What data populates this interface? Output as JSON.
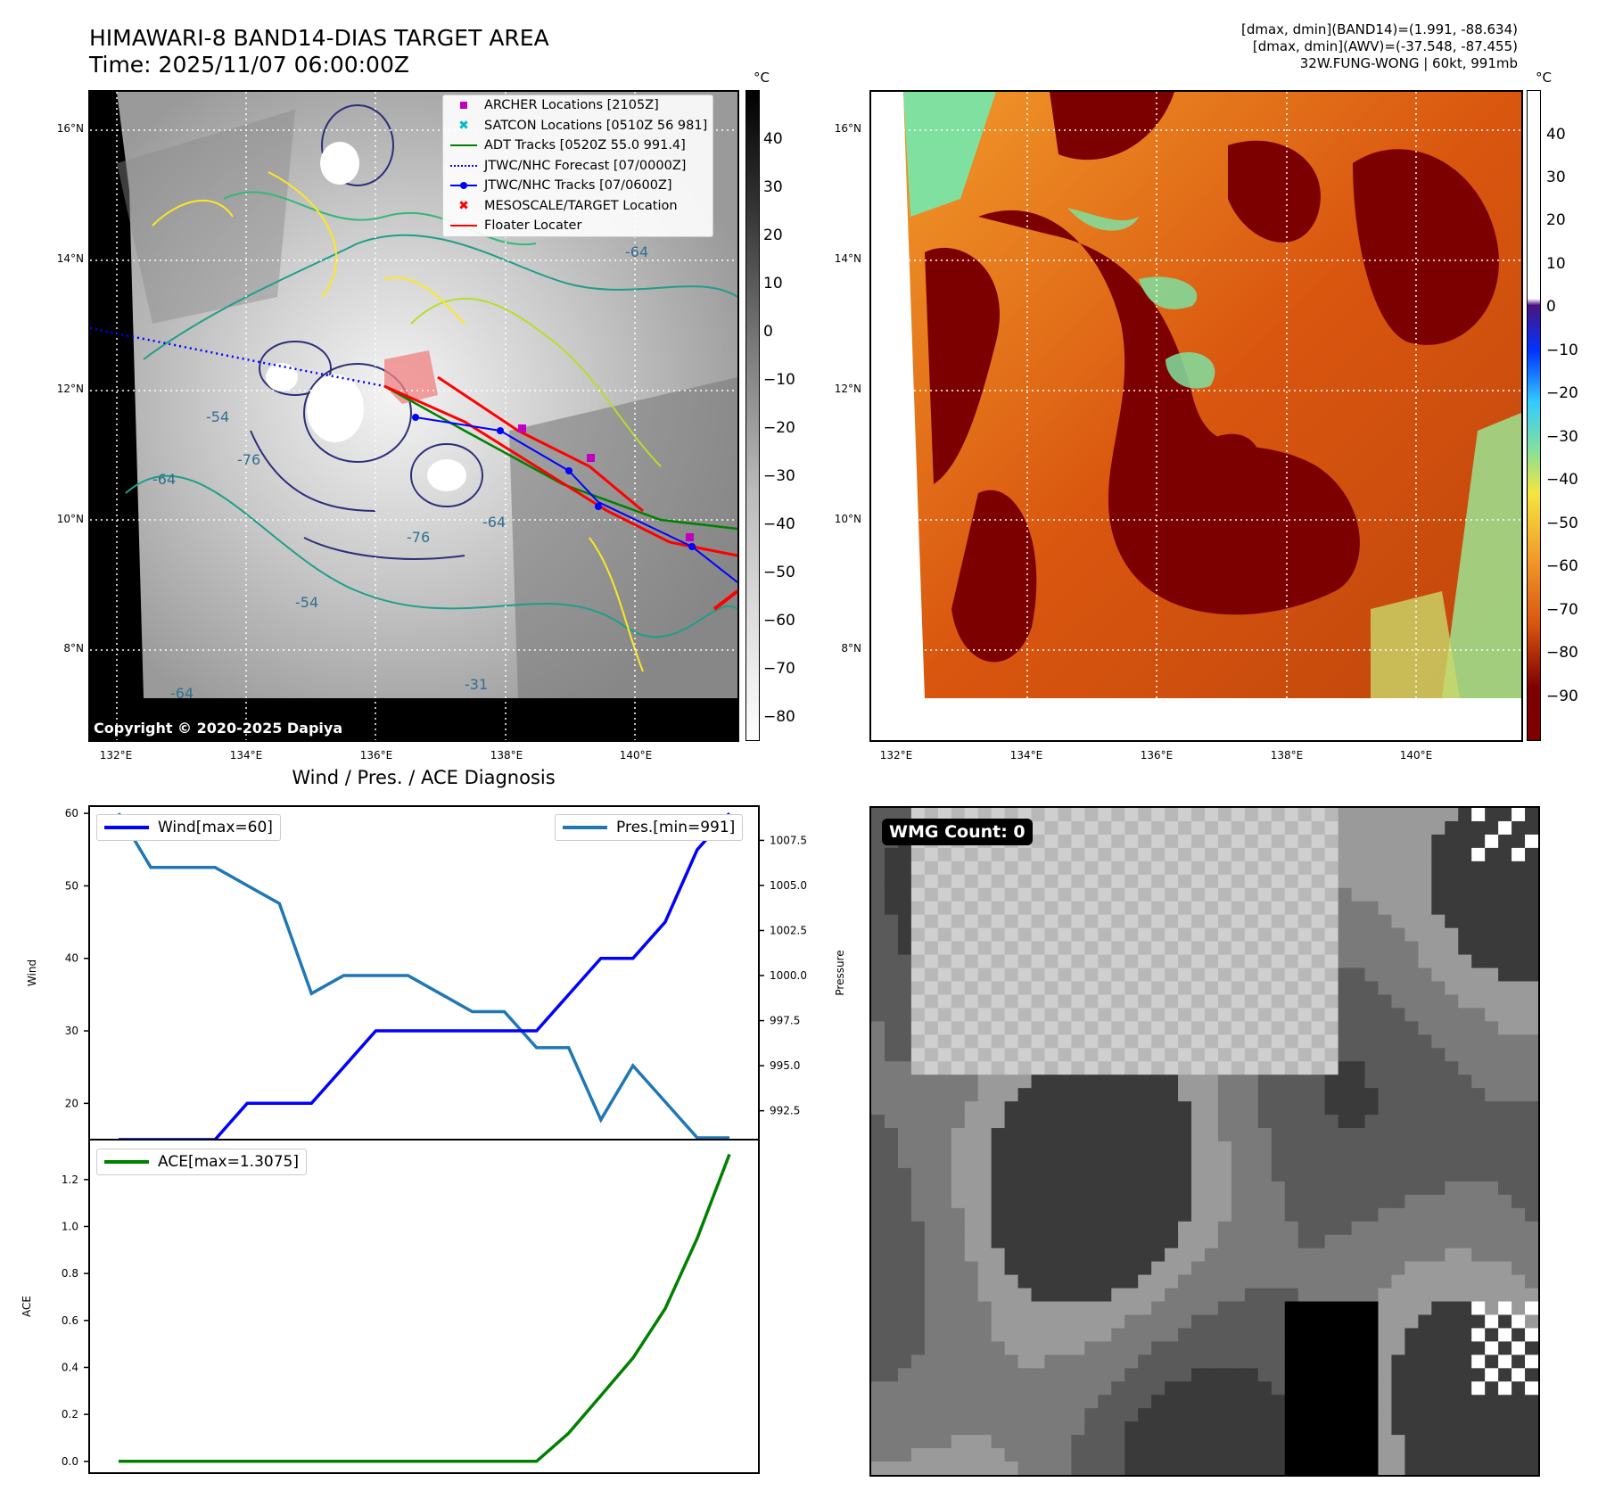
{
  "header": {
    "title_line1": "HIMAWARI-8 BAND14-DIAS TARGET AREA",
    "title_line2": "Time: 2025/11/07 06:00:00Z",
    "info_line1": "[dmax, dmin](BAND14)=(1.991, -88.634)",
    "info_line2": "[dmax, dmin](AWV)=(-37.548, -87.455)",
    "info_line3": "32W.FUNG-WONG | 60kt, 991mb"
  },
  "map": {
    "lat_labels": [
      "16°N",
      "14°N",
      "12°N",
      "10°N",
      "8°N"
    ],
    "lon_labels": [
      "132°E",
      "134°E",
      "136°E",
      "138°E",
      "140°E"
    ],
    "copyright": "Copyright © 2020-2025 Dapiya",
    "contour_labels": [
      "-64",
      "-54",
      "-76",
      "-64",
      "-76",
      "-54",
      "-64",
      "-31",
      "-64"
    ],
    "legend": [
      {
        "label": "ARCHER Locations [2105Z]",
        "color": "#bf00bf",
        "icon": "square-marker"
      },
      {
        "label": "SATCON Locations [0510Z 56 981]",
        "color": "#00bfbf",
        "icon": "x-marker"
      },
      {
        "label": "ADT Tracks [0520Z 55.0 991.4]",
        "color": "#008000",
        "icon": "line"
      },
      {
        "label": "JTWC/NHC Forecast [07/0000Z]",
        "color": "#0000ff",
        "icon": "dotted-line"
      },
      {
        "label": "JTWC/NHC Tracks [07/0600Z]",
        "color": "#0000ff",
        "icon": "line-dot"
      },
      {
        "label": "MESOSCALE/TARGET Location",
        "color": "#ff0000",
        "icon": "x-marker"
      },
      {
        "label": "Floater Locater",
        "color": "#ff0000",
        "icon": "line"
      }
    ]
  },
  "colorbar1": {
    "unit": "°C",
    "ticks": [
      "40",
      "30",
      "20",
      "10",
      "0",
      "−10",
      "−20",
      "−30",
      "−40",
      "−50",
      "−60",
      "−70",
      "−80"
    ]
  },
  "colorbar2": {
    "unit": "°C",
    "ticks": [
      "40",
      "30",
      "20",
      "10",
      "0",
      "−10",
      "−20",
      "−30",
      "−40",
      "−50",
      "−60",
      "−70",
      "−80",
      "−90"
    ]
  },
  "chart_data": [
    {
      "type": "line",
      "title": "Wind / Pres. / ACE Diagnosis",
      "ylabel": "Wind",
      "y2label": "Pressure",
      "x": [
        0,
        1,
        2,
        3,
        4,
        5,
        6,
        7,
        8,
        9,
        10,
        11,
        12,
        13,
        14,
        15,
        16,
        17,
        18,
        19
      ],
      "ylim": [
        15,
        61
      ],
      "y2lim": [
        990.9,
        1009.4
      ],
      "yticks": [
        "20",
        "30",
        "40",
        "50",
        "60"
      ],
      "y2ticks": [
        "992.5",
        "995.0",
        "997.5",
        "1000.0",
        "1002.5",
        "1005.0",
        "1007.5"
      ],
      "series": [
        {
          "name": "Wind[max=60]",
          "axis": "left",
          "color": "#0000ff",
          "values": [
            15,
            15,
            15,
            15,
            20,
            20,
            20,
            25,
            30,
            30,
            30,
            30,
            30,
            30,
            35,
            40,
            40,
            45,
            55,
            60
          ]
        },
        {
          "name": "Pres.[min=991]",
          "axis": "right",
          "color": "#1f77b4",
          "values": [
            1009,
            1006,
            1006,
            1006,
            1005,
            1004,
            999,
            1000,
            1000,
            1000,
            999,
            998,
            998,
            996,
            996,
            992,
            995,
            993,
            991,
            991
          ]
        }
      ]
    },
    {
      "type": "line",
      "ylabel": "ACE",
      "x": [
        0,
        1,
        2,
        3,
        4,
        5,
        6,
        7,
        8,
        9,
        10,
        11,
        12,
        13,
        14,
        15,
        16,
        17,
        18,
        19
      ],
      "ylim": [
        -0.05,
        1.37
      ],
      "yticks": [
        "0.0",
        "0.2",
        "0.4",
        "0.6",
        "0.8",
        "1.0",
        "1.2"
      ],
      "series": [
        {
          "name": "ACE[max=1.3075]",
          "color": "#008000",
          "values": [
            0,
            0,
            0,
            0,
            0,
            0,
            0,
            0,
            0,
            0,
            0,
            0,
            0,
            0,
            0.12,
            0.28,
            0.44,
            0.65,
            0.95,
            1.3075
          ]
        }
      ]
    }
  ],
  "wmg": {
    "label": "WMG Count: 0"
  }
}
